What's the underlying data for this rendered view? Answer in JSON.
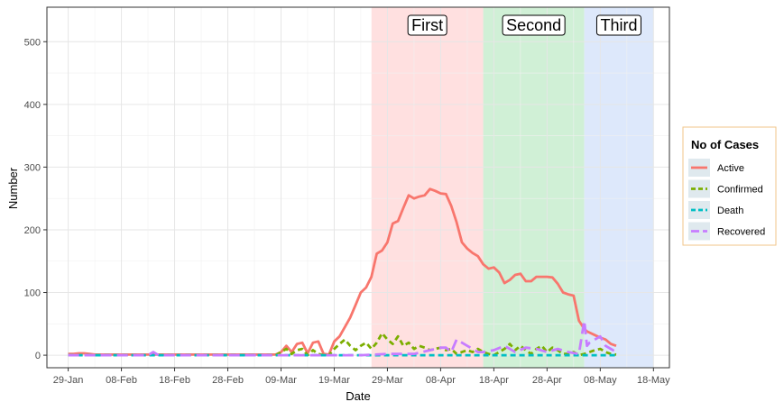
{
  "chart_data": {
    "type": "line",
    "title": "",
    "xlabel": "Date",
    "ylabel": "Number",
    "x_ticks": [
      "29-Jan",
      "08-Feb",
      "18-Feb",
      "28-Feb",
      "09-Mar",
      "19-Mar",
      "29-Mar",
      "08-Apr",
      "18-Apr",
      "28-Apr",
      "08-May",
      "18-May"
    ],
    "x_tick_days": [
      0,
      10,
      20,
      30,
      40,
      50,
      60,
      70,
      80,
      90,
      100,
      110
    ],
    "y_ticks": [
      "0",
      "100",
      "200",
      "300",
      "400",
      "500"
    ],
    "ylim": [
      -20,
      555
    ],
    "xlim": [
      -4,
      113
    ],
    "grid": true,
    "legend": {
      "title": "No of Cases",
      "position": "right",
      "entries": [
        {
          "label": "Active",
          "color": "#F8766D",
          "dash": "solid"
        },
        {
          "label": "Confirmed",
          "color": "#7CAE00",
          "dash": "dashed"
        },
        {
          "label": "Death",
          "color": "#00BFC4",
          "dash": "dashed"
        },
        {
          "label": "Recovered",
          "color": "#C77CFF",
          "dash": "longdash"
        }
      ]
    },
    "phases": [
      {
        "label": "First",
        "start": 57,
        "end": 78,
        "color": "#ffe0e0"
      },
      {
        "label": "Second",
        "start": 78,
        "end": 97,
        "color": "#d0f0d6"
      },
      {
        "label": "Third",
        "start": 97,
        "end": 110,
        "color": "#dde8fb"
      }
    ],
    "series": [
      {
        "name": "Active",
        "color": "#F8766D",
        "x": [
          0,
          1,
          2,
          3,
          4,
          5,
          10,
          20,
          30,
          39,
          40,
          41,
          42,
          43,
          44,
          45,
          46,
          47,
          48,
          49,
          50,
          51,
          52,
          53,
          54,
          55,
          56,
          57,
          58,
          59,
          60,
          61,
          62,
          63,
          64,
          65,
          66,
          67,
          68,
          69,
          70,
          71,
          72,
          73,
          74,
          75,
          76,
          77,
          78,
          79,
          80,
          81,
          82,
          83,
          84,
          85,
          86,
          87,
          88,
          89,
          90,
          91,
          92,
          93,
          94,
          95,
          96,
          97,
          97.5,
          98,
          99,
          100,
          101,
          102,
          103
        ],
        "y": [
          2,
          2,
          3,
          3,
          2,
          1,
          1,
          1,
          1,
          1,
          5,
          15,
          5,
          18,
          20,
          3,
          20,
          22,
          2,
          1,
          22,
          30,
          45,
          60,
          80,
          100,
          108,
          125,
          162,
          167,
          180,
          210,
          214,
          235,
          255,
          250,
          253,
          255,
          265,
          262,
          258,
          257,
          238,
          212,
          180,
          170,
          163,
          158,
          145,
          138,
          140,
          132,
          115,
          120,
          128,
          130,
          118,
          118,
          125,
          125,
          125,
          124,
          114,
          100,
          97,
          95,
          55,
          42,
          38,
          36,
          32,
          28,
          25,
          18,
          15
        ]
      },
      {
        "name": "Confirmed",
        "color": "#7CAE00",
        "x": [
          0,
          10,
          20,
          30,
          39,
          40,
          41,
          42,
          43,
          44,
          45,
          46,
          47,
          48,
          49,
          50,
          51,
          52,
          53,
          54,
          55,
          56,
          57,
          58,
          59,
          60,
          61,
          62,
          63,
          64,
          65,
          66,
          67,
          68,
          69,
          70,
          71,
          72,
          73,
          74,
          75,
          76,
          77,
          78,
          79,
          80,
          81,
          82,
          83,
          84,
          85,
          86,
          87,
          88,
          89,
          90,
          91,
          92,
          93,
          94,
          95,
          96,
          97,
          98,
          99,
          100,
          101,
          102,
          103
        ],
        "y": [
          0,
          0,
          0,
          0,
          0,
          5,
          10,
          2,
          8,
          10,
          0,
          8,
          2,
          0,
          0,
          10,
          18,
          25,
          15,
          8,
          15,
          20,
          10,
          20,
          35,
          25,
          18,
          30,
          15,
          20,
          10,
          15,
          12,
          8,
          10,
          12,
          8,
          10,
          2,
          5,
          8,
          5,
          10,
          5,
          2,
          0,
          5,
          10,
          18,
          8,
          15,
          8,
          2,
          10,
          15,
          5,
          12,
          8,
          2,
          2,
          5,
          0,
          2,
          5,
          8,
          10,
          5,
          2,
          1
        ]
      },
      {
        "name": "Death",
        "color": "#00BFC4",
        "x": [
          0,
          10,
          20,
          30,
          40,
          50,
          60,
          70,
          80,
          90,
          100,
          103
        ],
        "y": [
          0,
          0,
          0,
          0,
          0,
          0,
          0,
          0,
          0,
          0,
          0,
          0
        ]
      },
      {
        "name": "Recovered",
        "color": "#C77CFF",
        "x": [
          0,
          10,
          15,
          16,
          17,
          20,
          30,
          40,
          50,
          55,
          60,
          65,
          70,
          71,
          72,
          73,
          74,
          75,
          76,
          77,
          78,
          80,
          82,
          84,
          86,
          88,
          90,
          92,
          94,
          96,
          97,
          97.5,
          98,
          99,
          100,
          101,
          102,
          103
        ],
        "y": [
          0,
          0,
          0,
          5,
          0,
          0,
          0,
          0,
          0,
          0,
          2,
          2,
          12,
          12,
          5,
          25,
          20,
          15,
          10,
          5,
          5,
          8,
          15,
          5,
          12,
          10,
          5,
          10,
          5,
          2,
          55,
          15,
          20,
          25,
          30,
          15,
          10,
          5
        ]
      }
    ]
  }
}
